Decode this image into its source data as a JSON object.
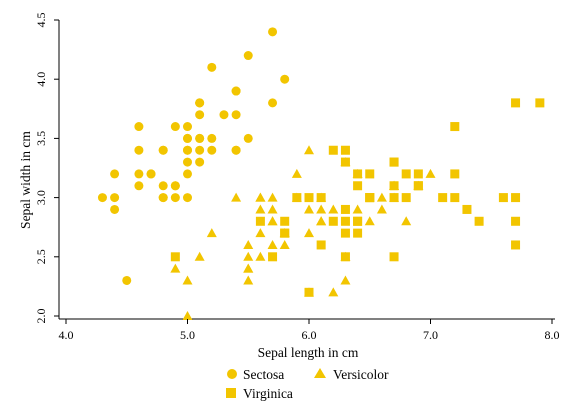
{
  "chart_data": {
    "type": "scatter",
    "title": "",
    "xlabel": "Sepal length in cm",
    "ylabel": "Sepal width in cm",
    "xlim": [
      4.0,
      8.0
    ],
    "ylim": [
      2.0,
      4.5
    ],
    "xticks": [
      "4.0",
      "5.0",
      "6.0",
      "7.0",
      "8.0"
    ],
    "yticks": [
      "2.0",
      "2.5",
      "3.0",
      "3.5",
      "4.0",
      "4.5"
    ],
    "grid": false,
    "legend_position": "bottom",
    "marker_color": "#F2C500",
    "series": [
      {
        "name": "Sectosa",
        "marker": "circle",
        "points": [
          [
            5.1,
            3.5
          ],
          [
            4.9,
            3.0
          ],
          [
            4.7,
            3.2
          ],
          [
            4.6,
            3.1
          ],
          [
            5.0,
            3.6
          ],
          [
            5.4,
            3.9
          ],
          [
            4.6,
            3.4
          ],
          [
            5.0,
            3.4
          ],
          [
            4.4,
            2.9
          ],
          [
            4.9,
            3.1
          ],
          [
            5.4,
            3.7
          ],
          [
            4.8,
            3.4
          ],
          [
            4.8,
            3.0
          ],
          [
            4.3,
            3.0
          ],
          [
            5.8,
            4.0
          ],
          [
            5.7,
            4.4
          ],
          [
            5.4,
            3.9
          ],
          [
            5.1,
            3.5
          ],
          [
            5.7,
            3.8
          ],
          [
            5.1,
            3.8
          ],
          [
            5.4,
            3.4
          ],
          [
            5.1,
            3.7
          ],
          [
            4.6,
            3.6
          ],
          [
            5.1,
            3.3
          ],
          [
            4.8,
            3.4
          ],
          [
            5.0,
            3.0
          ],
          [
            5.0,
            3.4
          ],
          [
            5.2,
            3.5
          ],
          [
            5.2,
            3.4
          ],
          [
            4.7,
            3.2
          ],
          [
            4.8,
            3.1
          ],
          [
            5.4,
            3.4
          ],
          [
            5.2,
            4.1
          ],
          [
            5.5,
            4.2
          ],
          [
            4.9,
            3.1
          ],
          [
            5.0,
            3.2
          ],
          [
            5.5,
            3.5
          ],
          [
            4.9,
            3.6
          ],
          [
            4.4,
            3.0
          ],
          [
            5.1,
            3.4
          ],
          [
            5.0,
            3.5
          ],
          [
            4.5,
            2.3
          ],
          [
            4.4,
            3.2
          ],
          [
            5.0,
            3.5
          ],
          [
            5.1,
            3.8
          ],
          [
            4.8,
            3.0
          ],
          [
            5.1,
            3.8
          ],
          [
            4.6,
            3.2
          ],
          [
            5.3,
            3.7
          ],
          [
            5.0,
            3.3
          ]
        ]
      },
      {
        "name": "Versicolor",
        "marker": "triangle",
        "points": [
          [
            7.0,
            3.2
          ],
          [
            6.4,
            3.2
          ],
          [
            6.9,
            3.1
          ],
          [
            5.5,
            2.3
          ],
          [
            6.5,
            2.8
          ],
          [
            5.7,
            2.8
          ],
          [
            6.3,
            3.3
          ],
          [
            4.9,
            2.4
          ],
          [
            6.6,
            2.9
          ],
          [
            5.2,
            2.7
          ],
          [
            5.0,
            2.0
          ],
          [
            5.9,
            3.0
          ],
          [
            6.0,
            2.2
          ],
          [
            6.1,
            2.9
          ],
          [
            5.6,
            2.9
          ],
          [
            6.7,
            3.1
          ],
          [
            5.6,
            3.0
          ],
          [
            5.8,
            2.7
          ],
          [
            6.2,
            2.2
          ],
          [
            5.6,
            2.5
          ],
          [
            5.9,
            3.2
          ],
          [
            6.1,
            2.8
          ],
          [
            6.3,
            2.5
          ],
          [
            6.1,
            2.8
          ],
          [
            6.4,
            2.9
          ],
          [
            6.6,
            3.0
          ],
          [
            6.8,
            2.8
          ],
          [
            6.7,
            3.0
          ],
          [
            6.0,
            2.9
          ],
          [
            5.7,
            2.6
          ],
          [
            5.5,
            2.4
          ],
          [
            5.5,
            2.4
          ],
          [
            5.8,
            2.7
          ],
          [
            6.0,
            2.7
          ],
          [
            5.4,
            3.0
          ],
          [
            6.0,
            3.4
          ],
          [
            6.7,
            3.1
          ],
          [
            6.3,
            2.3
          ],
          [
            5.6,
            3.0
          ],
          [
            5.5,
            2.5
          ],
          [
            5.5,
            2.6
          ],
          [
            6.1,
            3.0
          ],
          [
            5.8,
            2.6
          ],
          [
            5.0,
            2.3
          ],
          [
            5.6,
            2.7
          ],
          [
            5.7,
            3.0
          ],
          [
            5.7,
            2.9
          ],
          [
            6.2,
            2.9
          ],
          [
            5.1,
            2.5
          ],
          [
            5.7,
            2.8
          ]
        ]
      },
      {
        "name": "Virginica",
        "marker": "square",
        "points": [
          [
            6.3,
            3.3
          ],
          [
            5.8,
            2.7
          ],
          [
            7.1,
            3.0
          ],
          [
            6.3,
            2.9
          ],
          [
            6.5,
            3.0
          ],
          [
            7.6,
            3.0
          ],
          [
            4.9,
            2.5
          ],
          [
            7.3,
            2.9
          ],
          [
            6.7,
            2.5
          ],
          [
            7.2,
            3.6
          ],
          [
            6.5,
            3.2
          ],
          [
            6.4,
            2.7
          ],
          [
            6.8,
            3.0
          ],
          [
            5.7,
            2.5
          ],
          [
            5.8,
            2.8
          ],
          [
            6.4,
            3.2
          ],
          [
            6.5,
            3.0
          ],
          [
            7.7,
            3.8
          ],
          [
            7.7,
            2.6
          ],
          [
            6.0,
            2.2
          ],
          [
            6.9,
            3.2
          ],
          [
            5.6,
            2.8
          ],
          [
            7.7,
            2.8
          ],
          [
            6.3,
            2.7
          ],
          [
            6.7,
            3.3
          ],
          [
            7.2,
            3.2
          ],
          [
            6.2,
            2.8
          ],
          [
            6.1,
            3.0
          ],
          [
            6.4,
            2.8
          ],
          [
            7.2,
            3.0
          ],
          [
            7.4,
            2.8
          ],
          [
            7.9,
            3.8
          ],
          [
            6.4,
            2.8
          ],
          [
            6.3,
            2.8
          ],
          [
            6.1,
            2.6
          ],
          [
            7.7,
            3.0
          ],
          [
            6.3,
            3.4
          ],
          [
            6.4,
            3.1
          ],
          [
            6.0,
            3.0
          ],
          [
            6.9,
            3.1
          ],
          [
            6.7,
            3.1
          ],
          [
            6.9,
            3.1
          ],
          [
            5.8,
            2.7
          ],
          [
            6.8,
            3.2
          ],
          [
            6.7,
            3.3
          ],
          [
            6.7,
            3.0
          ],
          [
            6.3,
            2.5
          ],
          [
            6.5,
            3.0
          ],
          [
            6.2,
            3.4
          ],
          [
            5.9,
            3.0
          ]
        ]
      }
    ]
  }
}
